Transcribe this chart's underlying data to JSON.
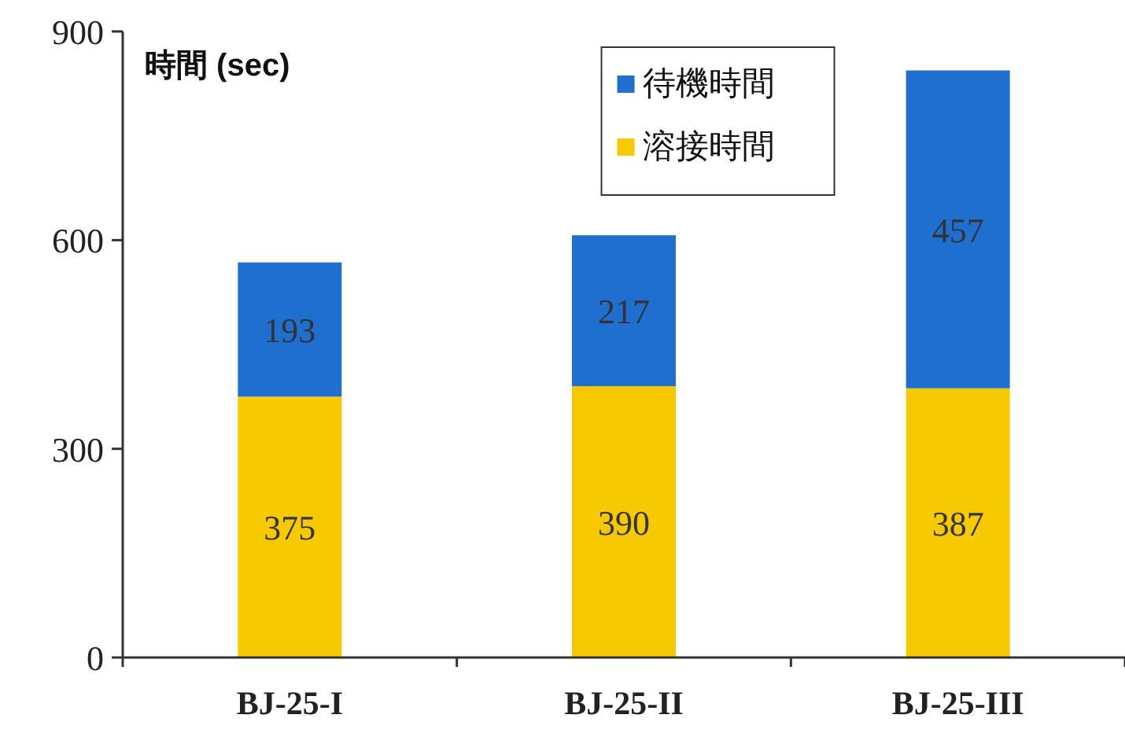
{
  "chart_data": {
    "type": "bar",
    "stacked": true,
    "ylabel": "時間 (sec)",
    "categories": [
      "BJ-25-I",
      "BJ-25-II",
      "BJ-25-III"
    ],
    "series": [
      {
        "name": "溶接時間",
        "color": "#f6c900",
        "values": [
          375,
          390,
          387
        ]
      },
      {
        "name": "待機時間",
        "color": "#1e6fd0",
        "values": [
          193,
          217,
          457
        ]
      }
    ],
    "ylim": [
      0,
      900
    ],
    "yticks": [
      0,
      300,
      600,
      900
    ],
    "data_labels": true,
    "legend": "top right",
    "grid": false
  }
}
